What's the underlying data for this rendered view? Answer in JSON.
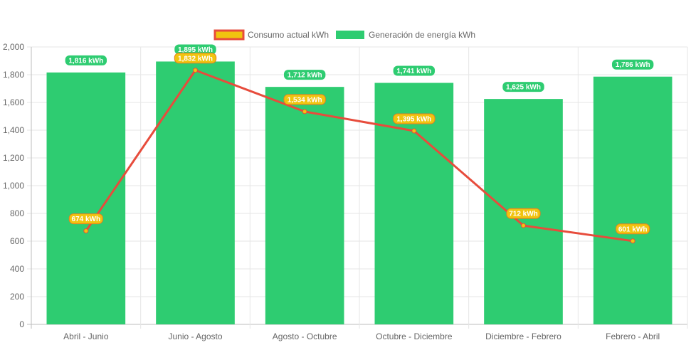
{
  "chart_data": {
    "type": "bar",
    "categories": [
      "Abril - Junio",
      "Junio - Agosto",
      "Agosto - Octubre",
      "Octubre - Diciembre",
      "Diciembre - Febrero",
      "Febrero - Abril"
    ],
    "series": [
      {
        "name": "Consumo actual kWh",
        "type": "line",
        "values": [
          674,
          1832,
          1534,
          1395,
          712,
          601
        ],
        "data_labels": [
          "674 kWh",
          "1,832 kWh",
          "1,534 kWh",
          "1,395 kWh",
          "712 kWh",
          "601 kWh"
        ],
        "color": "#e74c3c",
        "point_color": "#f1c40f"
      },
      {
        "name": "Generación de energía kWh",
        "type": "bar",
        "values": [
          1816,
          1895,
          1712,
          1741,
          1625,
          1786
        ],
        "data_labels": [
          "1,816 kWh",
          "1,895 kWh",
          "1,712 kWh",
          "1,741 kWh",
          "1,625 kWh",
          "1,786 kWh"
        ],
        "color": "#2ecc71"
      }
    ],
    "y_ticks": [
      "0",
      "200",
      "400",
      "600",
      "800",
      "1,000",
      "1,200",
      "1,400",
      "1,600",
      "1,800",
      "2,000"
    ],
    "ylim": [
      0,
      2000
    ],
    "grid": true,
    "legend_position": "top-center"
  }
}
